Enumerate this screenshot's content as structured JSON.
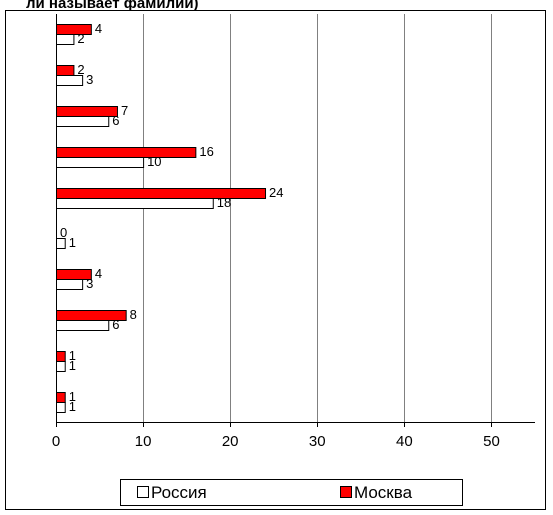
{
  "header_text": "ли называет фамилии)",
  "chart_data": {
    "type": "bar",
    "orientation": "horizontal",
    "categories": [
      "",
      "",
      "",
      "",
      "",
      "",
      "",
      "",
      "",
      ""
    ],
    "series": [
      {
        "name": "Москва",
        "color": "#ff0000",
        "values": [
          4,
          2,
          7,
          16,
          24,
          0,
          4,
          8,
          1,
          1
        ],
        "labels": [
          "4",
          "2",
          "7",
          "16",
          "24",
          "0",
          "4",
          "8",
          "1",
          "1"
        ]
      },
      {
        "name": "Россия",
        "color": "#ffffff",
        "values": [
          2,
          3,
          6,
          10,
          18,
          1,
          3,
          6,
          1,
          1
        ],
        "labels": [
          "2",
          "3",
          "6",
          "10",
          "18",
          "1",
          "3",
          "6",
          "1",
          "1"
        ]
      }
    ],
    "xlim": [
      0,
      55
    ],
    "x_ticks": [
      0,
      10,
      20,
      30,
      40,
      50
    ],
    "x_tick_labels": [
      "0",
      "10",
      "20",
      "30",
      "40",
      "50"
    ],
    "grid": true,
    "legend": {
      "placement": "bottom",
      "entries": [
        "Россия",
        "Москва"
      ]
    }
  }
}
